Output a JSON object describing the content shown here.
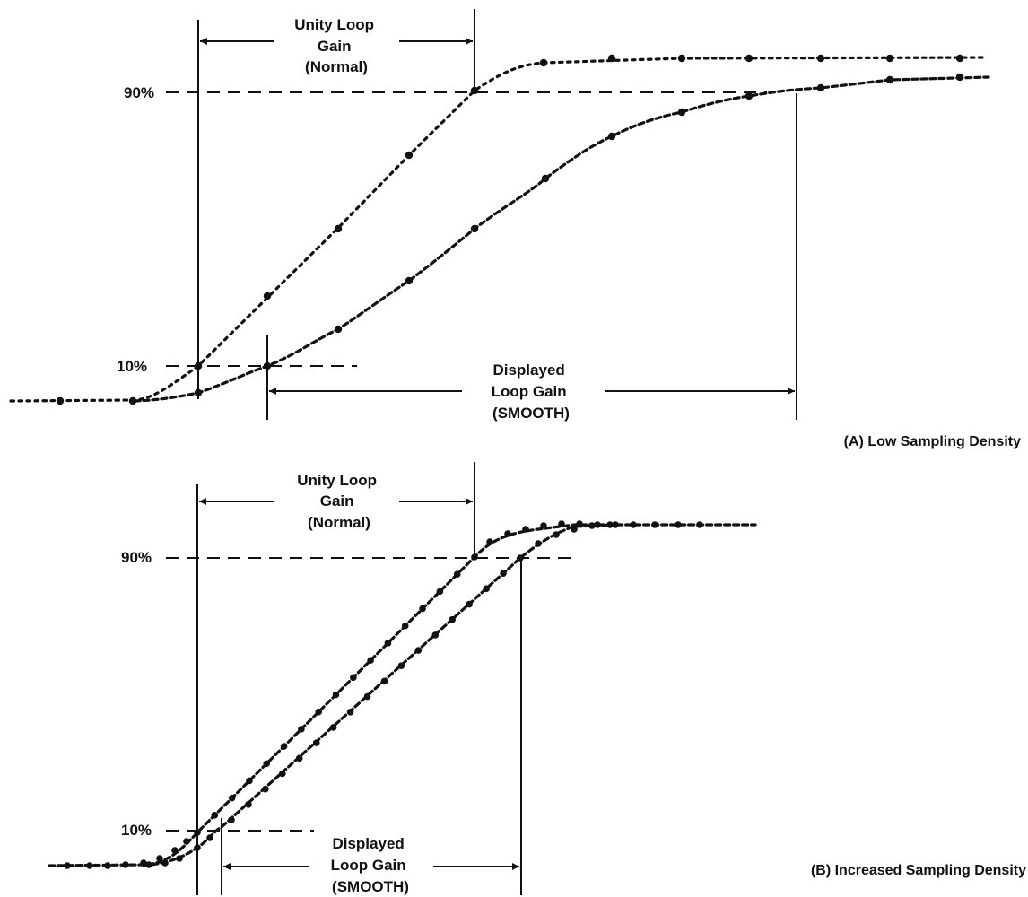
{
  "panel_a": {
    "pct90": "90%",
    "pct10": "10%",
    "unity_label": [
      "Unity Loop",
      "Gain",
      "(Normal)"
    ],
    "displayed_label": [
      "Displayed",
      "Loop Gain",
      "(SMOOTH)"
    ],
    "caption": "(A) Low Sampling Density"
  },
  "panel_b": {
    "pct90": "90%",
    "pct10": "10%",
    "unity_label": [
      "Unity Loop",
      "Gain",
      "(Normal)"
    ],
    "displayed_label": [
      "Displayed",
      "Loop Gain",
      "(SMOOTH)"
    ],
    "caption": "(B) Increased Sampling Density"
  }
}
